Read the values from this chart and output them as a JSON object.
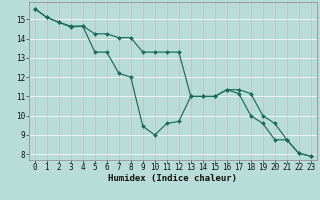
{
  "xlabel": "Humidex (Indice chaleur)",
  "background_color": "#b8ddd8",
  "grid_color": "#e8f8f5",
  "line_color": "#1a6b5a",
  "series1_x": [
    0,
    1,
    2,
    3,
    4,
    5,
    6,
    7,
    8,
    9,
    10,
    11,
    12,
    13,
    14,
    15,
    16,
    17,
    18,
    19,
    20,
    21,
    22,
    23
  ],
  "series1_y": [
    15.55,
    15.1,
    14.85,
    14.6,
    14.65,
    14.25,
    14.25,
    14.05,
    14.05,
    13.3,
    13.3,
    13.3,
    13.3,
    11.0,
    11.0,
    11.0,
    11.35,
    11.35,
    11.15,
    10.0,
    9.6,
    8.75,
    8.05,
    7.9
  ],
  "series2_x": [
    0,
    1,
    2,
    3,
    4,
    5,
    6,
    7,
    8,
    9,
    10,
    11,
    12,
    13,
    14,
    15,
    16,
    17,
    18,
    19,
    20,
    21,
    22,
    23
  ],
  "series2_y": [
    15.55,
    15.1,
    14.85,
    14.65,
    14.65,
    13.3,
    13.3,
    12.2,
    12.0,
    9.45,
    9.0,
    9.6,
    9.7,
    11.0,
    11.0,
    11.0,
    11.35,
    11.15,
    10.0,
    9.6,
    8.75,
    8.75,
    8.05,
    7.9
  ],
  "ylim": [
    7.7,
    15.9
  ],
  "xlim": [
    -0.5,
    23.5
  ],
  "yticks": [
    8,
    9,
    10,
    11,
    12,
    13,
    14,
    15
  ],
  "xticks": [
    0,
    1,
    2,
    3,
    4,
    5,
    6,
    7,
    8,
    9,
    10,
    11,
    12,
    13,
    14,
    15,
    16,
    17,
    18,
    19,
    20,
    21,
    22,
    23
  ],
  "tick_fontsize": 5.5,
  "label_fontsize": 6.5,
  "marker_size": 2.0,
  "line_width": 0.85
}
